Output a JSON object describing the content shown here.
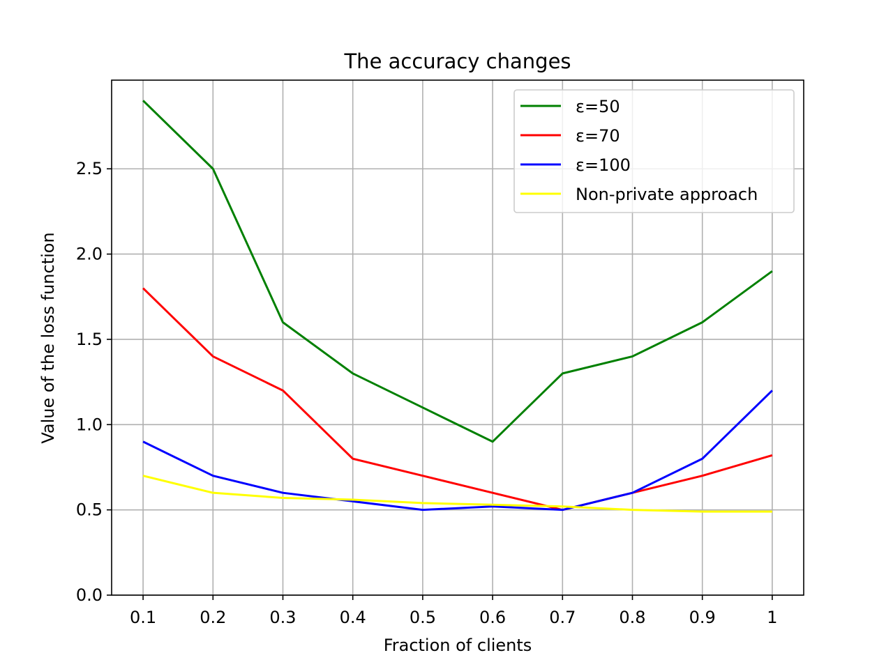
{
  "chart_data": {
    "type": "line",
    "title": "The accuracy changes",
    "xlabel": "Fraction of clients",
    "ylabel": "Value of the loss function",
    "categories": [
      "0.1",
      "0.2",
      "0.3",
      "0.4",
      "0.5",
      "0.6",
      "0.7",
      "0.8",
      "0.9",
      "1"
    ],
    "x": [
      0.1,
      0.2,
      0.3,
      0.4,
      0.5,
      0.6,
      0.7,
      0.8,
      0.9,
      1.0
    ],
    "ylim": [
      0,
      3.02
    ],
    "xlim": [
      0.055,
      1.045
    ],
    "yticks": [
      0.0,
      0.5,
      1.0,
      1.5,
      2.0,
      2.5
    ],
    "ytick_labels": [
      "0.0",
      "0.5",
      "1.0",
      "1.5",
      "2.0",
      "2.5"
    ],
    "grid": true,
    "legend_position": "top-right",
    "series": [
      {
        "name": "ε=50",
        "color": "#008000",
        "values": [
          2.9,
          2.5,
          1.6,
          1.3,
          1.1,
          0.9,
          1.3,
          1.4,
          1.6,
          1.9
        ]
      },
      {
        "name": "ε=70",
        "color": "#ff0000",
        "values": [
          1.8,
          1.4,
          1.2,
          0.8,
          0.7,
          0.6,
          0.5,
          0.6,
          0.7,
          0.82
        ]
      },
      {
        "name": "ε=100",
        "color": "#0000ff",
        "values": [
          0.9,
          0.7,
          0.6,
          0.55,
          0.5,
          0.52,
          0.5,
          0.6,
          0.8,
          1.2
        ]
      },
      {
        "name": "Non-private approach",
        "color": "#ffff00",
        "values": [
          0.7,
          0.6,
          0.57,
          0.56,
          0.54,
          0.53,
          0.52,
          0.5,
          0.49,
          0.49
        ]
      }
    ]
  }
}
